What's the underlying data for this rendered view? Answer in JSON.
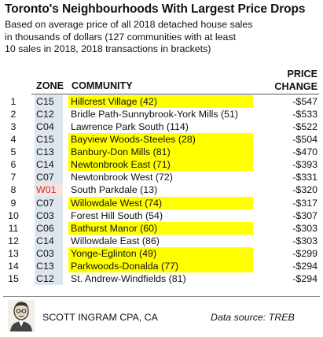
{
  "header": {
    "title": "Toronto's Neighbourhoods With Largest Price Drops",
    "subtitle_lines": [
      "Based on average price of all 2018 detached house sales",
      "in thousands of dollars (127 communities with at least",
      "10 sales in 2018, 2018 transactions in brackets)"
    ]
  },
  "columns": {
    "zone": "ZONE",
    "community": "COMMUNITY",
    "change_line1": "PRICE",
    "change_line2": "CHANGE"
  },
  "colors": {
    "highlight": "#ffff00",
    "zone_column": "#dde6ef",
    "w01_zone_bg": "#f7e2e0",
    "w01_zone_text": "#c0392b"
  },
  "chart_data": {
    "type": "table",
    "title": "Toronto's Neighbourhoods With Largest Price Drops",
    "rows": [
      {
        "rank": "1",
        "zone": "C15",
        "community": "Hillcrest Village (42)",
        "change": "-$547",
        "value": -547,
        "highlight": true
      },
      {
        "rank": "2",
        "zone": "C12",
        "community": "Bridle Path-Sunnybrook-York Mills (51)",
        "change": "-$533",
        "value": -533,
        "highlight": false
      },
      {
        "rank": "3",
        "zone": "C04",
        "community": "Lawrence Park South (114)",
        "change": "-$522",
        "value": -522,
        "highlight": false
      },
      {
        "rank": "4",
        "zone": "C15",
        "community": "Bayview Woods-Steeles (28)",
        "change": "-$504",
        "value": -504,
        "highlight": true
      },
      {
        "rank": "5",
        "zone": "C13",
        "community": "Banbury-Don Mills (81)",
        "change": "-$470",
        "value": -470,
        "highlight": true
      },
      {
        "rank": "6",
        "zone": "C14",
        "community": "Newtonbrook East (71)",
        "change": "-$393",
        "value": -393,
        "highlight": true
      },
      {
        "rank": "7",
        "zone": "C07",
        "community": "Newtonbrook West (72)",
        "change": "-$331",
        "value": -331,
        "highlight": false
      },
      {
        "rank": "8",
        "zone": "W01",
        "community": "South Parkdale (13)",
        "change": "-$320",
        "value": -320,
        "highlight": false
      },
      {
        "rank": "9",
        "zone": "C07",
        "community": "Willowdale West (74)",
        "change": "-$317",
        "value": -317,
        "highlight": true
      },
      {
        "rank": "10",
        "zone": "C03",
        "community": "Forest Hill South (54)",
        "change": "-$307",
        "value": -307,
        "highlight": false
      },
      {
        "rank": "11",
        "zone": "C06",
        "community": "Bathurst Manor (60)",
        "change": "-$303",
        "value": -303,
        "highlight": true
      },
      {
        "rank": "12",
        "zone": "C14",
        "community": "Willowdale East (86)",
        "change": "-$303",
        "value": -303,
        "highlight": false
      },
      {
        "rank": "13",
        "zone": "C03",
        "community": "Yonge-Eglinton (49)",
        "change": "-$299",
        "value": -299,
        "highlight": true
      },
      {
        "rank": "14",
        "zone": "C13",
        "community": "Parkwoods-Donalda (77)",
        "change": "-$294",
        "value": -294,
        "highlight": true
      },
      {
        "rank": "15",
        "zone": "C12",
        "community": "St. Andrew-Windfields (81)",
        "change": "-$294",
        "value": -294,
        "highlight": false
      }
    ]
  },
  "footer": {
    "brand": "SCOTT INGRAM CPA, CA",
    "source": "Data source: TREB",
    "avatar_icon": "portrait-icon"
  }
}
